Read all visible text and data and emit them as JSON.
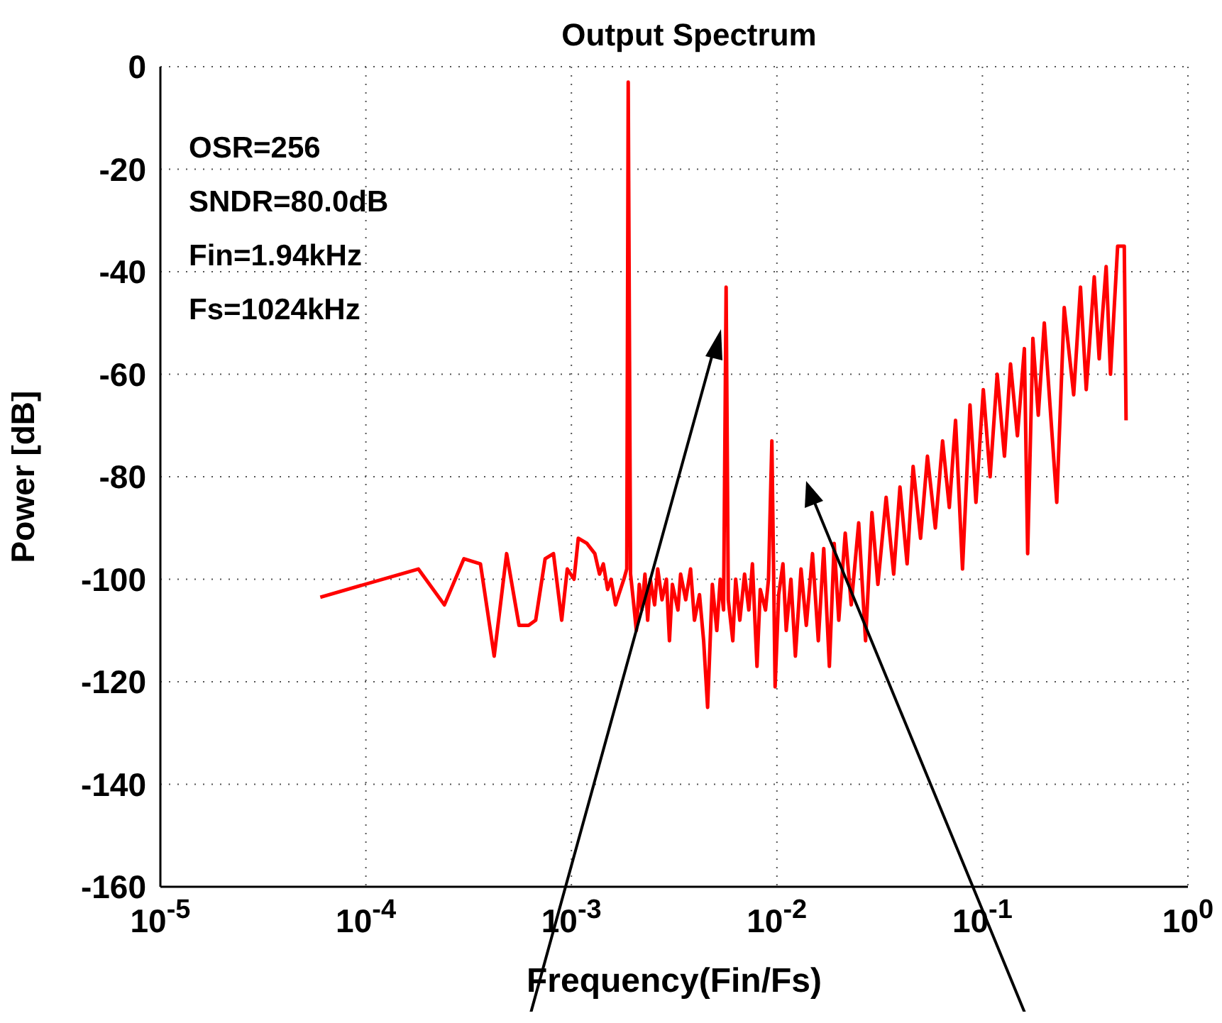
{
  "chart_data": {
    "type": "line",
    "title": "Output Spectrum",
    "xlabel": "Frequency(Fin/Fs)",
    "ylabel": "Power [dB]",
    "annotations": [
      "OSR=256",
      "SNDR=80.0dB",
      "Fin=1.94kHz",
      "Fs=1024kHz"
    ],
    "log": "x",
    "grid": true,
    "marker": "none",
    "line_style": "solid",
    "xlim": [
      1e-05,
      1
    ],
    "xticks": [
      {
        "value": 1e-05,
        "label": "10$^{-5}$"
      },
      {
        "value": 0.0001,
        "label": "10$^{-4}$"
      },
      {
        "value": 0.001,
        "label": "10$^{-3}$"
      },
      {
        "value": 0.01,
        "label": "10$^{-2}$"
      },
      {
        "value": 0.1,
        "label": "10$^{-1}$"
      },
      {
        "value": 1,
        "label": "10$^{0}$"
      }
    ],
    "ylim": [
      -160,
      0
    ],
    "yticks": [
      -160,
      -140,
      -120,
      -100,
      -80,
      -60,
      -40,
      -20,
      0
    ],
    "series": [
      {
        "color": "#ff0000",
        "x": [
          6e-05,
          0.00018,
          0.000241,
          0.0003,
          0.000361,
          0.000421,
          0.000484,
          0.000556,
          0.000619,
          0.00067,
          0.000745,
          0.000818,
          0.000897,
          0.000955,
          0.00103,
          0.00108,
          0.00119,
          0.0013,
          0.00137,
          0.00143,
          0.0015,
          0.00156,
          0.00164,
          0.0017,
          0.0018,
          0.00186,
          0.00189,
          0.00194,
          0.002,
          0.00207,
          0.00214,
          0.0022,
          0.00228,
          0.00235,
          0.00242,
          0.00254,
          0.00263,
          0.00276,
          0.0029,
          0.003,
          0.0031,
          0.0033,
          0.0034,
          0.0036,
          0.0038,
          0.00397,
          0.0042,
          0.0044,
          0.0046,
          0.00485,
          0.0051,
          0.0053,
          0.0055,
          0.00566,
          0.0058,
          0.0061,
          0.0063,
          0.0066,
          0.00696,
          0.0073,
          0.0076,
          0.008,
          0.0083,
          0.0088,
          0.0091,
          0.00945,
          0.0098,
          0.0102,
          0.0107,
          0.0111,
          0.0117,
          0.0123,
          0.0131,
          0.0139,
          0.0149,
          0.0159,
          0.0169,
          0.018,
          0.019,
          0.02,
          0.0215,
          0.023,
          0.025,
          0.027,
          0.029,
          0.031,
          0.034,
          0.037,
          0.0397,
          0.043,
          0.046,
          0.05,
          0.054,
          0.059,
          0.064,
          0.069,
          0.074,
          0.08,
          0.087,
          0.093,
          0.101,
          0.109,
          0.118,
          0.128,
          0.137,
          0.148,
          0.16,
          0.166,
          0.176,
          0.187,
          0.2,
          0.23,
          0.25,
          0.278,
          0.3,
          0.32,
          0.35,
          0.37,
          0.4,
          0.42,
          0.455,
          0.49,
          0.5
        ],
        "values": [
          -103.5,
          -98,
          -105,
          -96,
          -97,
          -115,
          -95,
          -109,
          -109,
          -108,
          -96,
          -95,
          -108,
          -98,
          -100,
          -92,
          -93,
          -95,
          -99,
          -97,
          -102,
          -100,
          -105,
          -103,
          -100,
          -98,
          -3,
          -99,
          -104,
          -110,
          -101,
          -106,
          -99,
          -108,
          -100,
          -105,
          -98,
          -104,
          -100,
          -112,
          -101,
          -106,
          -99,
          -104,
          -98,
          -108,
          -103,
          -112,
          -125,
          -101,
          -110,
          -100,
          -106,
          -43,
          -104,
          -112,
          -100,
          -108,
          -99,
          -106,
          -97,
          -117,
          -102,
          -106,
          -100,
          -73,
          -121,
          -103,
          -97,
          -110,
          -100,
          -115,
          -98,
          -109,
          -95,
          -112,
          -94,
          -117,
          -93,
          -108,
          -91,
          -105,
          -89,
          -112,
          -87,
          -101,
          -84,
          -99,
          -82,
          -97,
          -78,
          -92,
          -76,
          -90,
          -73,
          -86,
          -69,
          -98,
          -66,
          -85,
          -63,
          -80,
          -60,
          -76,
          -58,
          -72,
          -55,
          -95,
          -53,
          -68,
          -50,
          -85,
          -47,
          -64,
          -43,
          -63,
          -41,
          -57,
          -39,
          -60,
          -35,
          -35,
          -69
        ]
      }
    ]
  }
}
